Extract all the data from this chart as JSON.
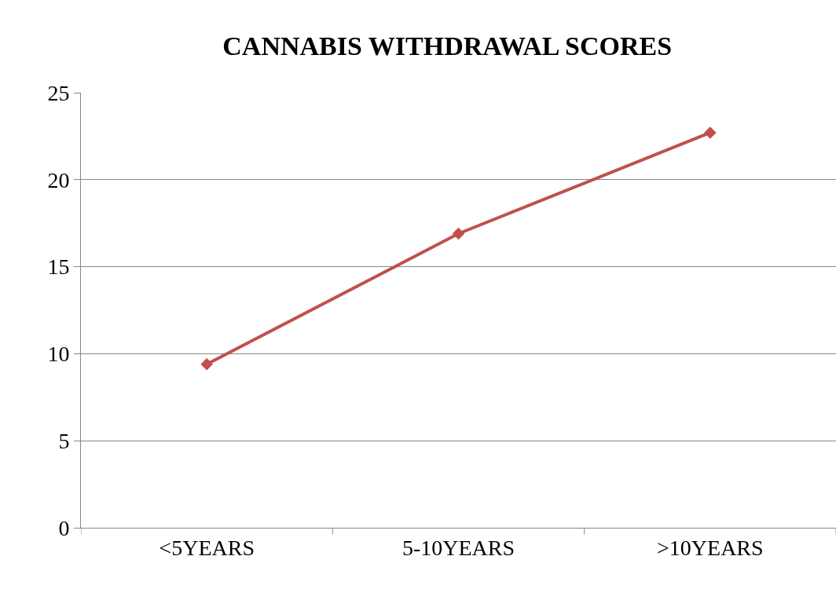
{
  "chart_data": {
    "type": "line",
    "title": "CANNABIS WITHDRAWAL SCORES",
    "categories": [
      "<5YEARS",
      "5-10YEARS",
      ">10YEARS"
    ],
    "series": [
      {
        "color": "#c0504d",
        "values": [
          9.4,
          16.9,
          22.7
        ]
      }
    ],
    "ylim": [
      0,
      25
    ],
    "yticks": [
      0,
      5,
      10,
      15,
      20,
      25
    ],
    "grid": "y",
    "marker": "diamond",
    "line_style": "solid"
  }
}
